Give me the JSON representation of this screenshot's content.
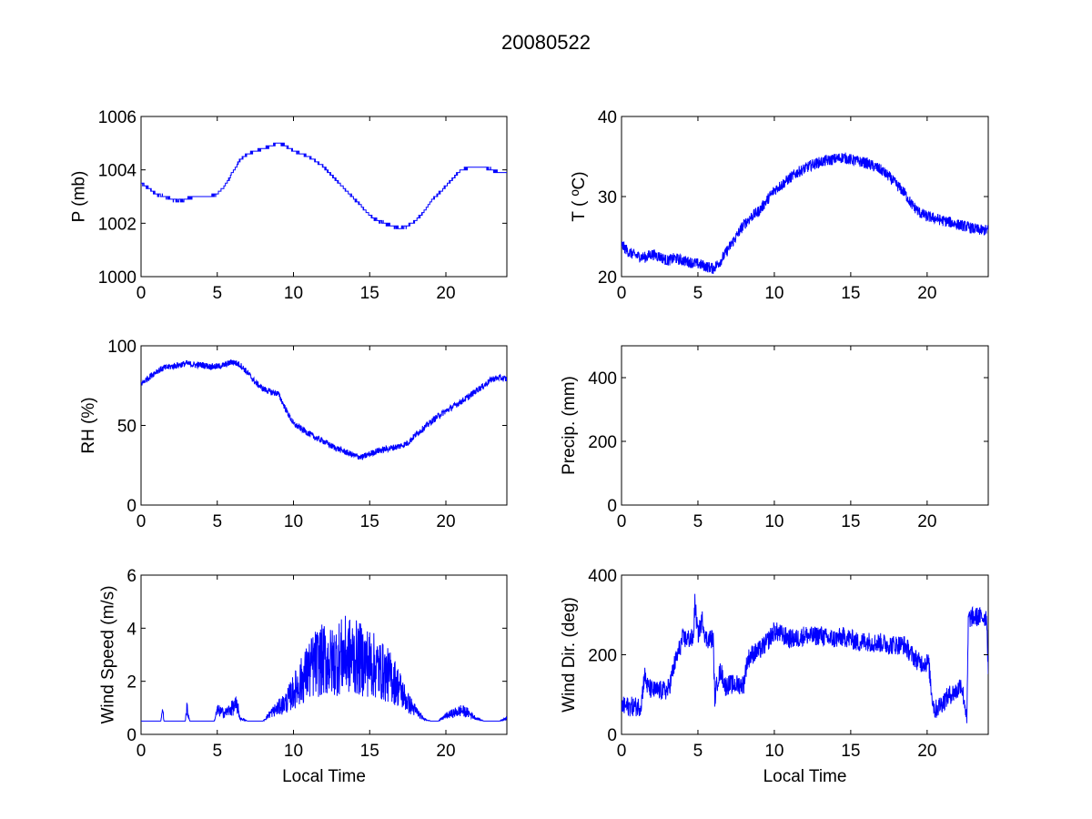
{
  "figure": {
    "title": "20080522"
  },
  "chart_data": [
    {
      "type": "line",
      "ylabel": "P (mb)",
      "xlabel": "",
      "xlim": [
        0,
        24
      ],
      "ylim": [
        1000,
        1006
      ],
      "xticks": [
        0,
        5,
        10,
        15,
        20
      ],
      "yticks": [
        1000,
        1002,
        1004,
        1006
      ],
      "grid": false,
      "series": [
        {
          "color": "#0000ff",
          "noise": 0.04,
          "x": [
            0,
            0.5,
            1,
            1.5,
            2,
            2.5,
            3,
            3.5,
            4,
            4.5,
            5,
            5.5,
            6,
            6.5,
            7,
            7.5,
            8,
            8.5,
            9,
            9.5,
            10,
            10.5,
            11,
            11.5,
            12,
            12.5,
            13,
            13.5,
            14,
            14.5,
            15,
            15.5,
            16,
            16.5,
            17,
            17.5,
            18,
            18.5,
            19,
            19.5,
            20,
            20.5,
            21,
            21.5,
            22,
            22.5,
            23,
            23.5,
            24
          ],
          "y": [
            1003.5,
            1003.3,
            1003.1,
            1003.0,
            1002.9,
            1002.85,
            1002.9,
            1003.0,
            1003.0,
            1003.0,
            1003.1,
            1003.4,
            1003.9,
            1004.4,
            1004.6,
            1004.7,
            1004.8,
            1004.9,
            1005.0,
            1004.9,
            1004.7,
            1004.6,
            1004.5,
            1004.3,
            1004.1,
            1003.8,
            1003.5,
            1003.2,
            1002.9,
            1002.6,
            1002.3,
            1002.1,
            1002.0,
            1001.9,
            1001.8,
            1001.9,
            1002.1,
            1002.4,
            1002.8,
            1003.1,
            1003.4,
            1003.7,
            1004.0,
            1004.1,
            1004.1,
            1004.1,
            1004.0,
            1003.9,
            1003.9
          ]
        }
      ]
    },
    {
      "type": "line",
      "ylabel": "T ( ºC)",
      "xlabel": "",
      "xlim": [
        0,
        24
      ],
      "ylim": [
        20,
        40
      ],
      "xticks": [
        0,
        5,
        10,
        15,
        20
      ],
      "yticks": [
        20,
        30,
        40
      ],
      "grid": false,
      "series": [
        {
          "color": "#0000ff",
          "noise": 0.7,
          "x": [
            0,
            0.5,
            1,
            1.5,
            2,
            2.5,
            3,
            3.5,
            4,
            4.5,
            5,
            5.5,
            6,
            6.5,
            7,
            7.5,
            8,
            8.5,
            9,
            9.5,
            10,
            10.5,
            11,
            11.5,
            12,
            12.5,
            13,
            13.5,
            14,
            14.5,
            15,
            15.5,
            16,
            16.5,
            17,
            17.5,
            18,
            18.5,
            19,
            19.5,
            20,
            20.5,
            21,
            21.5,
            22,
            22.5,
            23,
            23.5,
            24
          ],
          "y": [
            24.0,
            23.0,
            22.6,
            22.4,
            22.8,
            22.5,
            22.0,
            22.3,
            22.0,
            21.8,
            21.6,
            21.3,
            21.0,
            22.0,
            23.5,
            25.0,
            26.5,
            27.5,
            28.2,
            29.5,
            30.8,
            31.5,
            32.3,
            33.0,
            33.5,
            34.0,
            34.3,
            34.5,
            34.7,
            34.9,
            34.6,
            34.4,
            34.2,
            33.8,
            33.3,
            32.5,
            31.5,
            30.5,
            29.0,
            28.0,
            27.5,
            27.3,
            27.0,
            26.8,
            26.5,
            26.3,
            26.0,
            25.8,
            25.8
          ]
        }
      ]
    },
    {
      "type": "line",
      "ylabel": "RH (%)",
      "xlabel": "",
      "xlim": [
        0,
        24
      ],
      "ylim": [
        0,
        100
      ],
      "xticks": [
        0,
        5,
        10,
        15,
        20
      ],
      "yticks": [
        0,
        50,
        100
      ],
      "grid": false,
      "series": [
        {
          "color": "#0000ff",
          "noise": 2.0,
          "x": [
            0,
            0.5,
            1,
            1.5,
            2,
            2.5,
            3,
            3.5,
            4,
            4.5,
            5,
            5.5,
            6,
            6.5,
            7,
            7.5,
            8,
            8.5,
            9,
            9.5,
            10,
            10.5,
            11,
            11.5,
            12,
            12.5,
            13,
            13.5,
            14,
            14.5,
            15,
            15.5,
            16,
            16.5,
            17,
            17.5,
            18,
            18.5,
            19,
            19.5,
            20,
            20.5,
            21,
            21.5,
            22,
            22.5,
            23,
            23.5,
            24
          ],
          "y": [
            76,
            80,
            84,
            86,
            87,
            88,
            89,
            88,
            88,
            87,
            87,
            88,
            90,
            88,
            83,
            77,
            73,
            71,
            70,
            60,
            51,
            48,
            45,
            42,
            40,
            37,
            35,
            33,
            31,
            30,
            32,
            34,
            35,
            36,
            37,
            39,
            44,
            48,
            52,
            56,
            59,
            62,
            65,
            68,
            72,
            75,
            79,
            80,
            79
          ]
        }
      ]
    },
    {
      "type": "line",
      "ylabel": "Precip. (mm)",
      "xlabel": "",
      "xlim": [
        0,
        24
      ],
      "ylim": [
        0,
        500
      ],
      "xticks": [
        0,
        5,
        10,
        15,
        20
      ],
      "yticks": [
        0,
        200,
        400
      ],
      "grid": false,
      "series": []
    },
    {
      "type": "line",
      "ylabel": "Wind Speed (m/s)",
      "xlabel": "Local Time",
      "xlim": [
        0,
        24
      ],
      "ylim": [
        0,
        6
      ],
      "xticks": [
        0,
        5,
        10,
        15,
        20
      ],
      "yticks": [
        0,
        2,
        4,
        6
      ],
      "grid": false,
      "series": [
        {
          "color": "#0000ff",
          "noise": 0.9,
          "x": [
            0,
            1.3,
            1.4,
            1.5,
            2,
            2.9,
            3.0,
            3.2,
            4,
            4.8,
            5,
            5.5,
            6,
            6.3,
            6.5,
            7,
            8,
            8.5,
            9,
            9.5,
            10,
            10.5,
            11,
            11.5,
            12,
            12.5,
            13,
            13.5,
            14,
            14.5,
            15,
            15.5,
            16,
            16.5,
            17,
            17.5,
            18,
            18.5,
            19,
            19.5,
            20,
            20.5,
            21,
            21.5,
            22,
            22.5,
            23,
            23.5,
            24
          ],
          "y": [
            0.5,
            0.5,
            1.0,
            0.5,
            0.5,
            0.5,
            1.0,
            0.5,
            0.5,
            0.5,
            0.9,
            0.8,
            1.0,
            1.1,
            0.6,
            0.5,
            0.5,
            0.8,
            1.0,
            1.2,
            1.6,
            2.0,
            2.4,
            2.7,
            2.8,
            2.7,
            2.9,
            3.0,
            2.9,
            2.8,
            2.7,
            2.5,
            2.3,
            2.1,
            1.7,
            1.2,
            0.9,
            0.6,
            0.5,
            0.5,
            0.7,
            0.8,
            0.9,
            0.8,
            0.6,
            0.5,
            0.5,
            0.5,
            0.6
          ]
        }
      ]
    },
    {
      "type": "line",
      "ylabel": "Wind Dir. (deg)",
      "xlabel": "Local Time",
      "xlim": [
        0,
        24
      ],
      "ylim": [
        0,
        400
      ],
      "xticks": [
        0,
        5,
        10,
        15,
        20
      ],
      "yticks": [
        0,
        200,
        400
      ],
      "grid": false,
      "series": [
        {
          "color": "#0000ff",
          "noise": 25,
          "x": [
            0,
            1.2,
            1.3,
            1.5,
            1.7,
            2,
            3,
            3.2,
            3.3,
            3.5,
            4,
            4.5,
            4.7,
            4.8,
            5,
            5.3,
            5.5,
            5.8,
            6,
            6.1,
            6.3,
            6.5,
            6.8,
            7,
            7.5,
            8,
            8.1,
            8.3,
            8.5,
            9,
            9.5,
            10,
            10.5,
            11,
            11.5,
            12,
            12.5,
            13,
            13.5,
            14,
            14.5,
            15,
            15.5,
            16,
            16.5,
            17,
            17.5,
            18,
            18.5,
            19,
            19.5,
            20.1,
            20.3,
            20.5,
            21,
            21.5,
            22,
            22.2,
            22.5,
            22.6,
            22.7,
            23,
            23.5,
            23.9,
            24
          ],
          "y": [
            70,
            70,
            80,
            150,
            120,
            110,
            110,
            130,
            150,
            180,
            240,
            240,
            240,
            330,
            250,
            290,
            240,
            240,
            240,
            90,
            140,
            160,
            120,
            125,
            125,
            125,
            160,
            190,
            200,
            210,
            230,
            260,
            250,
            240,
            240,
            250,
            245,
            250,
            240,
            240,
            245,
            240,
            230,
            235,
            230,
            230,
            225,
            225,
            225,
            200,
            180,
            180,
            100,
            60,
            80,
            100,
            110,
            130,
            70,
            30,
            290,
            295,
            295,
            295,
            160
          ]
        }
      ]
    }
  ]
}
